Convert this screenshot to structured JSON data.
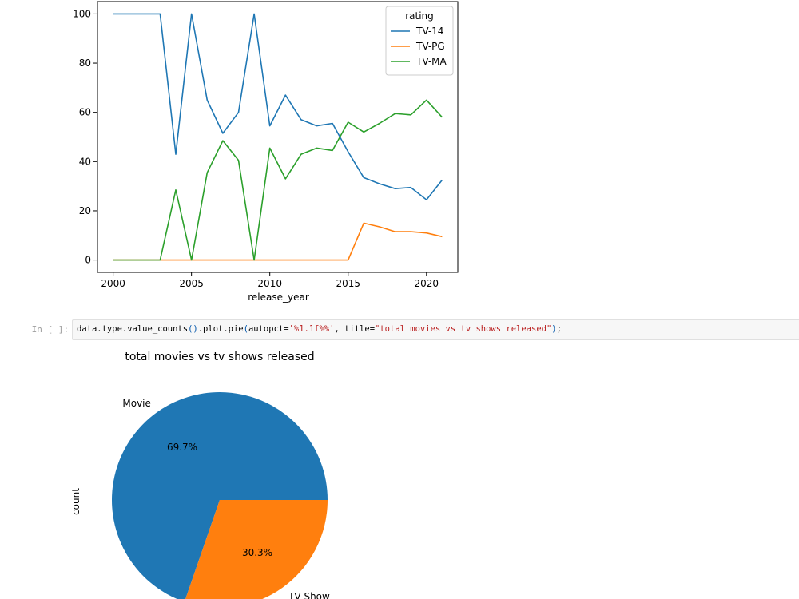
{
  "chart_data": [
    {
      "type": "line",
      "title": "",
      "xlabel": "release_year",
      "ylabel": "",
      "xlim": [
        1999,
        2022
      ],
      "ylim": [
        -5,
        105
      ],
      "xticks": [
        2000,
        2005,
        2010,
        2015,
        2020
      ],
      "yticks": [
        0,
        20,
        40,
        60,
        80,
        100
      ],
      "legend_title": "rating",
      "legend_position": "top-right",
      "grid": false,
      "x": [
        2000,
        2001,
        2002,
        2003,
        2004,
        2005,
        2006,
        2007,
        2008,
        2009,
        2010,
        2011,
        2012,
        2013,
        2014,
        2015,
        2016,
        2017,
        2018,
        2019,
        2020,
        2021
      ],
      "series": [
        {
          "name": "TV-14",
          "color": "#1f77b4",
          "values": [
            100,
            100,
            100,
            100,
            43,
            100,
            65,
            51.5,
            60,
            100,
            54.5,
            67,
            57,
            54.5,
            55.5,
            44,
            33.5,
            31,
            29,
            29.5,
            24.5,
            32.5
          ]
        },
        {
          "name": "TV-PG",
          "color": "#ff7f0e",
          "values": [
            0,
            0,
            0,
            0,
            0,
            0,
            0,
            0,
            0,
            0,
            0,
            0,
            0,
            0,
            0,
            0,
            15,
            13.5,
            11.5,
            11.5,
            11,
            9.5
          ]
        },
        {
          "name": "TV-MA",
          "color": "#2ca02c",
          "values": [
            0,
            0,
            0,
            0,
            28.5,
            0,
            35.5,
            48.5,
            40.5,
            0,
            45.5,
            33,
            43,
            45.5,
            44.5,
            56,
            52,
            55.5,
            59.5,
            59,
            65,
            58
          ]
        }
      ]
    },
    {
      "type": "pie",
      "title": "total movies vs tv shows released",
      "ylabel": "count",
      "labels": [
        "Movie",
        "TV Show"
      ],
      "values": [
        69.7,
        30.3
      ],
      "autopct": [
        "69.7%",
        "30.3%"
      ],
      "colors": [
        "#1f77b4",
        "#ff7f0e"
      ]
    }
  ],
  "cell": {
    "prompt": "In [ ]:",
    "code_parts": [
      {
        "t": "data.type.value_counts",
        "c": "plain"
      },
      {
        "t": "()",
        "c": "paren"
      },
      {
        "t": ".plot.pie",
        "c": "plain"
      },
      {
        "t": "(",
        "c": "paren"
      },
      {
        "t": "autopct=",
        "c": "plain"
      },
      {
        "t": "'%1.1f%%'",
        "c": "str"
      },
      {
        "t": ", title=",
        "c": "plain"
      },
      {
        "t": "\"total movies vs tv shows released\"",
        "c": "str"
      },
      {
        "t": ")",
        "c": "paren"
      },
      {
        "t": ";",
        "c": "plain"
      }
    ]
  }
}
